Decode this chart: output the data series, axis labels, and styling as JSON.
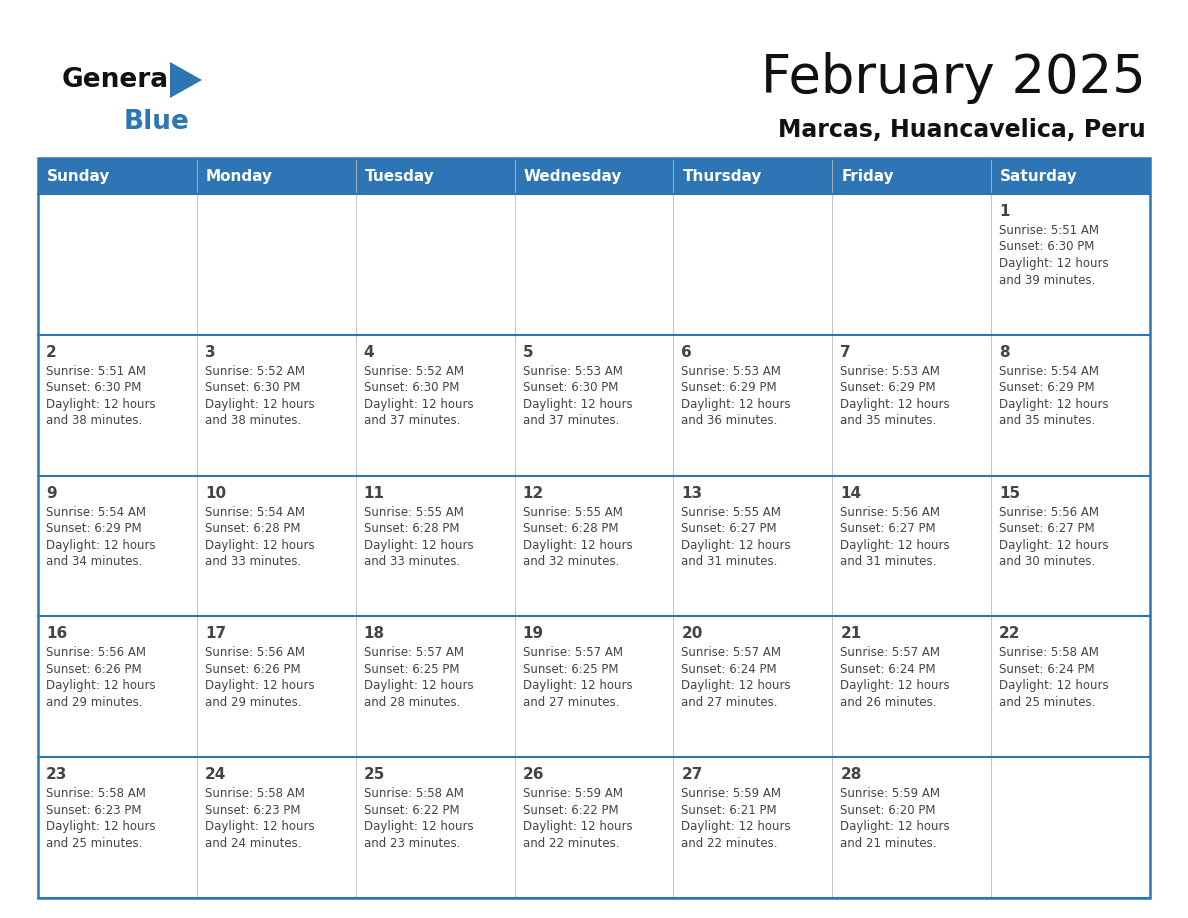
{
  "title": "February 2025",
  "subtitle": "Marcas, Huancavelica, Peru",
  "days_of_week": [
    "Sunday",
    "Monday",
    "Tuesday",
    "Wednesday",
    "Thursday",
    "Friday",
    "Saturday"
  ],
  "header_bg": "#2E75B6",
  "header_text": "#FFFFFF",
  "border_color": "#2E75B6",
  "day_num_color": "#444444",
  "text_color": "#444444",
  "title_color": "#111111",
  "subtitle_color": "#111111",
  "logo_general_color": "#111111",
  "logo_blue_color": "#2E75B6",
  "calendar": [
    [
      null,
      null,
      null,
      null,
      null,
      null,
      {
        "day": 1,
        "sunrise": "5:51 AM",
        "sunset": "6:30 PM",
        "daylight": "12 hours and 39 minutes."
      }
    ],
    [
      {
        "day": 2,
        "sunrise": "5:51 AM",
        "sunset": "6:30 PM",
        "daylight": "12 hours and 38 minutes."
      },
      {
        "day": 3,
        "sunrise": "5:52 AM",
        "sunset": "6:30 PM",
        "daylight": "12 hours and 38 minutes."
      },
      {
        "day": 4,
        "sunrise": "5:52 AM",
        "sunset": "6:30 PM",
        "daylight": "12 hours and 37 minutes."
      },
      {
        "day": 5,
        "sunrise": "5:53 AM",
        "sunset": "6:30 PM",
        "daylight": "12 hours and 37 minutes."
      },
      {
        "day": 6,
        "sunrise": "5:53 AM",
        "sunset": "6:29 PM",
        "daylight": "12 hours and 36 minutes."
      },
      {
        "day": 7,
        "sunrise": "5:53 AM",
        "sunset": "6:29 PM",
        "daylight": "12 hours and 35 minutes."
      },
      {
        "day": 8,
        "sunrise": "5:54 AM",
        "sunset": "6:29 PM",
        "daylight": "12 hours and 35 minutes."
      }
    ],
    [
      {
        "day": 9,
        "sunrise": "5:54 AM",
        "sunset": "6:29 PM",
        "daylight": "12 hours and 34 minutes."
      },
      {
        "day": 10,
        "sunrise": "5:54 AM",
        "sunset": "6:28 PM",
        "daylight": "12 hours and 33 minutes."
      },
      {
        "day": 11,
        "sunrise": "5:55 AM",
        "sunset": "6:28 PM",
        "daylight": "12 hours and 33 minutes."
      },
      {
        "day": 12,
        "sunrise": "5:55 AM",
        "sunset": "6:28 PM",
        "daylight": "12 hours and 32 minutes."
      },
      {
        "day": 13,
        "sunrise": "5:55 AM",
        "sunset": "6:27 PM",
        "daylight": "12 hours and 31 minutes."
      },
      {
        "day": 14,
        "sunrise": "5:56 AM",
        "sunset": "6:27 PM",
        "daylight": "12 hours and 31 minutes."
      },
      {
        "day": 15,
        "sunrise": "5:56 AM",
        "sunset": "6:27 PM",
        "daylight": "12 hours and 30 minutes."
      }
    ],
    [
      {
        "day": 16,
        "sunrise": "5:56 AM",
        "sunset": "6:26 PM",
        "daylight": "12 hours and 29 minutes."
      },
      {
        "day": 17,
        "sunrise": "5:56 AM",
        "sunset": "6:26 PM",
        "daylight": "12 hours and 29 minutes."
      },
      {
        "day": 18,
        "sunrise": "5:57 AM",
        "sunset": "6:25 PM",
        "daylight": "12 hours and 28 minutes."
      },
      {
        "day": 19,
        "sunrise": "5:57 AM",
        "sunset": "6:25 PM",
        "daylight": "12 hours and 27 minutes."
      },
      {
        "day": 20,
        "sunrise": "5:57 AM",
        "sunset": "6:24 PM",
        "daylight": "12 hours and 27 minutes."
      },
      {
        "day": 21,
        "sunrise": "5:57 AM",
        "sunset": "6:24 PM",
        "daylight": "12 hours and 26 minutes."
      },
      {
        "day": 22,
        "sunrise": "5:58 AM",
        "sunset": "6:24 PM",
        "daylight": "12 hours and 25 minutes."
      }
    ],
    [
      {
        "day": 23,
        "sunrise": "5:58 AM",
        "sunset": "6:23 PM",
        "daylight": "12 hours and 25 minutes."
      },
      {
        "day": 24,
        "sunrise": "5:58 AM",
        "sunset": "6:23 PM",
        "daylight": "12 hours and 24 minutes."
      },
      {
        "day": 25,
        "sunrise": "5:58 AM",
        "sunset": "6:22 PM",
        "daylight": "12 hours and 23 minutes."
      },
      {
        "day": 26,
        "sunrise": "5:59 AM",
        "sunset": "6:22 PM",
        "daylight": "12 hours and 22 minutes."
      },
      {
        "day": 27,
        "sunrise": "5:59 AM",
        "sunset": "6:21 PM",
        "daylight": "12 hours and 22 minutes."
      },
      {
        "day": 28,
        "sunrise": "5:59 AM",
        "sunset": "6:20 PM",
        "daylight": "12 hours and 21 minutes."
      },
      null
    ]
  ],
  "fig_width": 11.88,
  "fig_height": 9.18,
  "dpi": 100
}
